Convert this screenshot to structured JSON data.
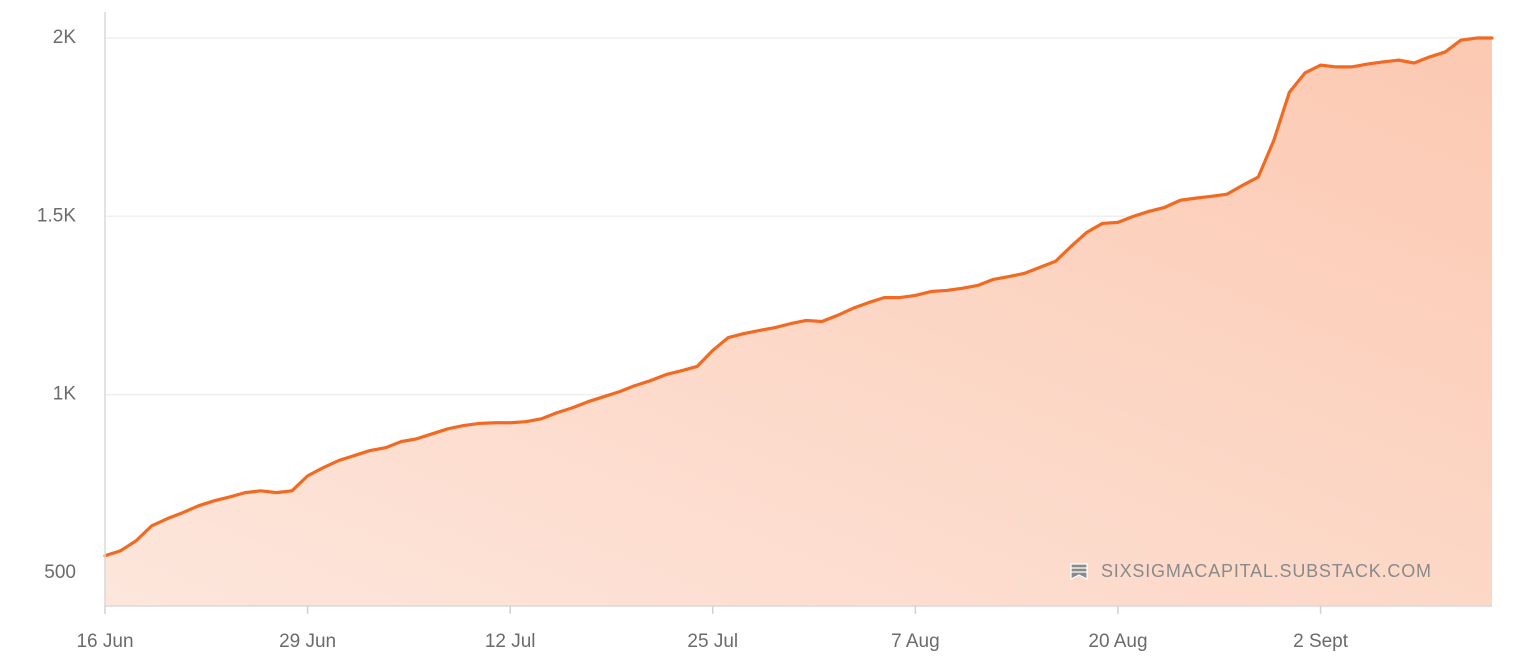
{
  "chart_data": {
    "type": "area",
    "categories": [
      "16 Jun",
      null,
      null,
      null,
      null,
      null,
      null,
      null,
      null,
      null,
      null,
      null,
      null,
      "29 Jun",
      null,
      null,
      null,
      null,
      null,
      null,
      null,
      null,
      null,
      null,
      null,
      null,
      "12 Jul",
      null,
      null,
      null,
      null,
      null,
      null,
      null,
      null,
      null,
      null,
      null,
      null,
      "25 Jul",
      null,
      null,
      null,
      null,
      null,
      null,
      null,
      null,
      null,
      null,
      null,
      null,
      "7 Aug",
      null,
      null,
      null,
      null,
      null,
      null,
      null,
      null,
      null,
      null,
      null,
      null,
      "20 Aug",
      null,
      null,
      null,
      null,
      null,
      null,
      null,
      null,
      null,
      null,
      null,
      null,
      "2 Sept",
      null,
      null,
      null,
      null,
      null,
      null,
      null,
      null,
      null,
      null,
      null
    ],
    "values": [
      548,
      562,
      590,
      632,
      652,
      669,
      688,
      702,
      713,
      725,
      730,
      725,
      730,
      772,
      795,
      815,
      829,
      843,
      851,
      868,
      876,
      890,
      904,
      913,
      919,
      921,
      921,
      924,
      932,
      949,
      963,
      980,
      994,
      1008,
      1025,
      1039,
      1056,
      1067,
      1079,
      1124,
      1160,
      1171,
      1180,
      1188,
      1199,
      1208,
      1205,
      1222,
      1242,
      1258,
      1272,
      1272,
      1278,
      1289,
      1292,
      1298,
      1306,
      1323,
      1331,
      1340,
      1357,
      1374,
      1416,
      1455,
      1480,
      1483,
      1500,
      1514,
      1525,
      1545,
      1551,
      1556,
      1562,
      1587,
      1610,
      1713,
      1848,
      1902,
      1924,
      1919,
      1919,
      1927,
      1933,
      1938,
      1930,
      1947,
      1961,
      1994,
      2000,
      2000
    ],
    "color": "#f26a21",
    "ylim": [
      407,
      2073
    ],
    "yticks": [
      500,
      {
        "value": 1000,
        "label": "1K"
      },
      {
        "value": 1500,
        "label": "1.5K"
      },
      {
        "value": 2000,
        "label": "2K"
      }
    ],
    "grid": true,
    "annotation": "SIXSIGMACAPITAL.SUBSTACK.COM"
  }
}
